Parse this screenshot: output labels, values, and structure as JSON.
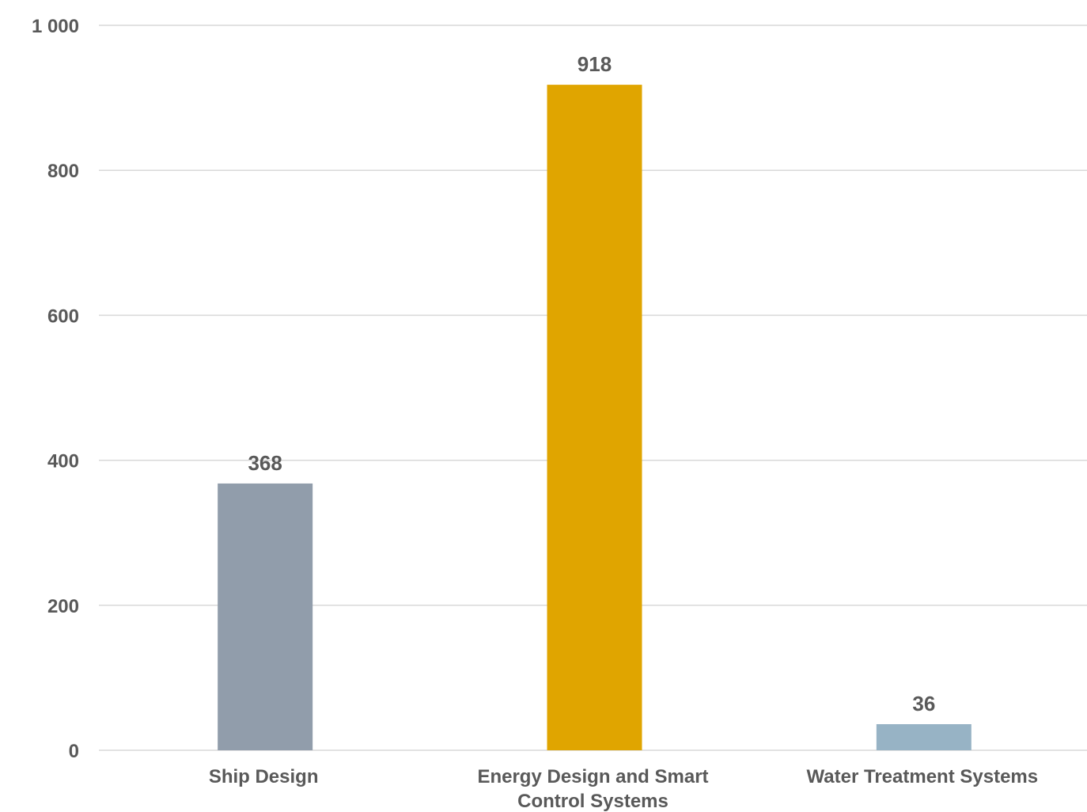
{
  "chart_data": {
    "type": "bar",
    "categories": [
      [
        "Ship Design"
      ],
      [
        "Energy Design and Smart",
        "Control Systems"
      ],
      [
        "Water Treatment Systems"
      ]
    ],
    "values": [
      368,
      918,
      36
    ],
    "data_labels": [
      "368",
      "918",
      "36"
    ],
    "bar_colors": [
      "#919dab",
      "#e0a500",
      "#97b3c5"
    ],
    "ylim": [
      0,
      1000
    ],
    "yticks": [
      0,
      200,
      400,
      600,
      800,
      1000
    ],
    "ytick_labels": [
      "0",
      "200",
      "400",
      "600",
      "800",
      "1 000"
    ],
    "grid": true,
    "legend": "none",
    "title": "",
    "xlabel": "",
    "ylabel": ""
  }
}
